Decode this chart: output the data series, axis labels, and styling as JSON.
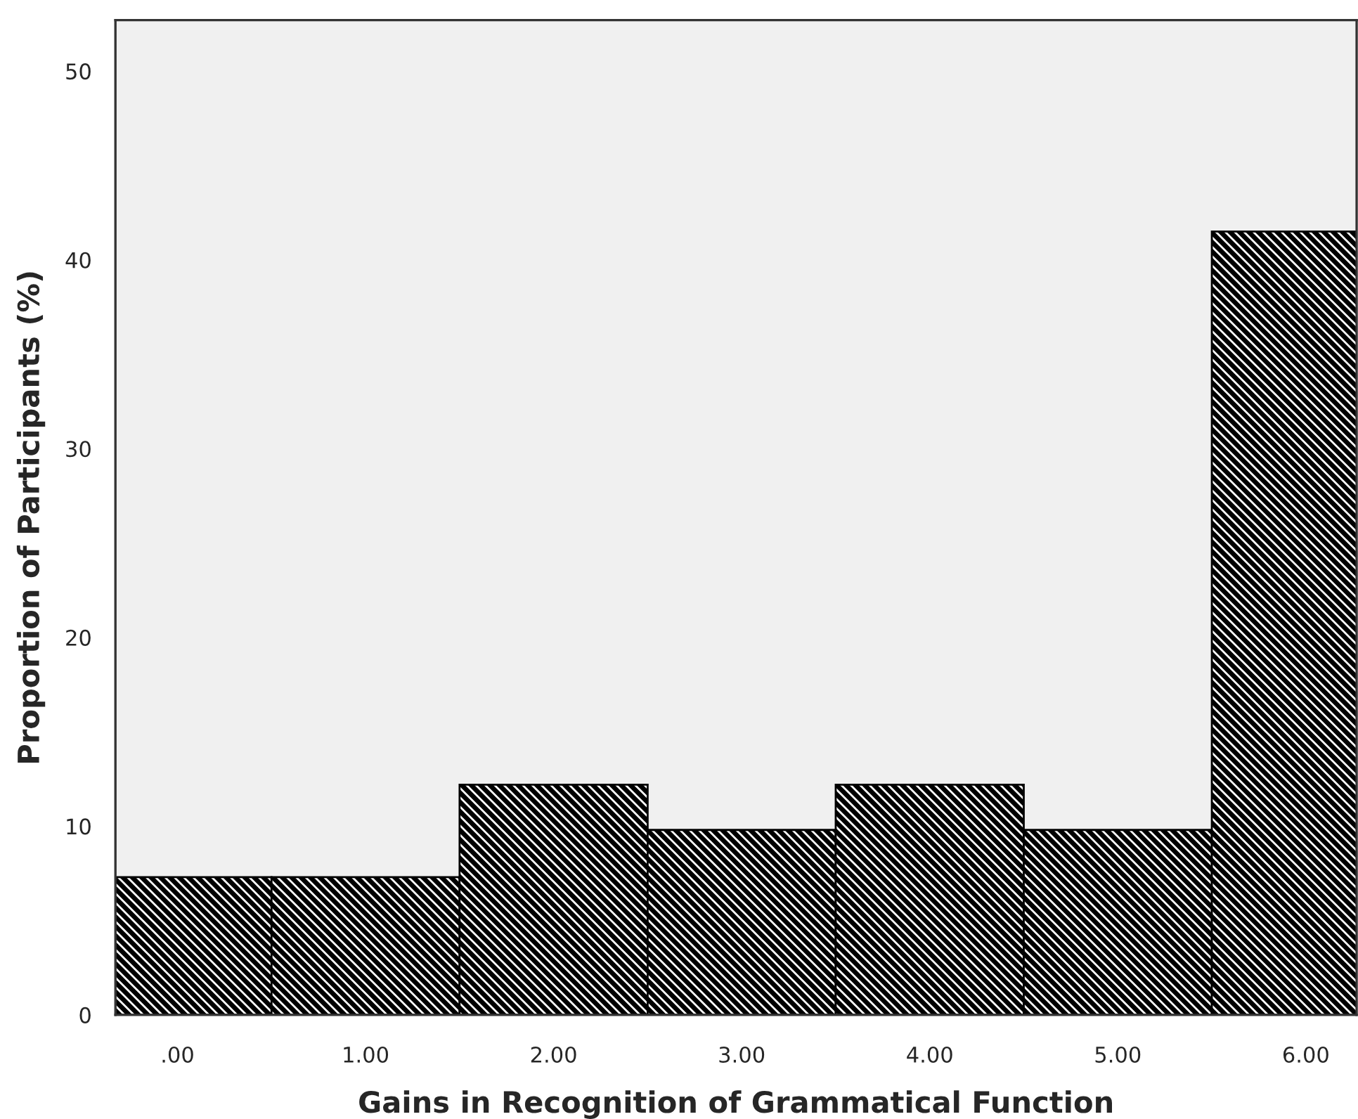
{
  "chart_data": {
    "type": "histogram",
    "xlabel": "Gains in Recognition of Grammatical Function",
    "ylabel": "Proportion of Participants (%)",
    "bins": [
      -0.5,
      0.5,
      1.5,
      2.5,
      3.5,
      4.5,
      5.5,
      6.5
    ],
    "values": [
      7.3,
      7.3,
      12.2,
      9.8,
      12.2,
      9.8,
      41.5
    ],
    "color": "#000000",
    "xlim": [
      -0.33,
      6.27
    ],
    "xticks": [
      {
        "value": 0,
        "label": ".00"
      },
      {
        "value": 1,
        "label": "1.00"
      },
      {
        "value": 2,
        "label": "2.00"
      },
      {
        "value": 3,
        "label": "3.00"
      },
      {
        "value": 4,
        "label": "4.00"
      },
      {
        "value": 5,
        "label": "5.00"
      },
      {
        "value": 6,
        "label": "6.00"
      }
    ],
    "ylim": [
      0,
      52.7
    ],
    "yticks": [
      0,
      10,
      20,
      30,
      40,
      50
    ],
    "grid": false
  }
}
